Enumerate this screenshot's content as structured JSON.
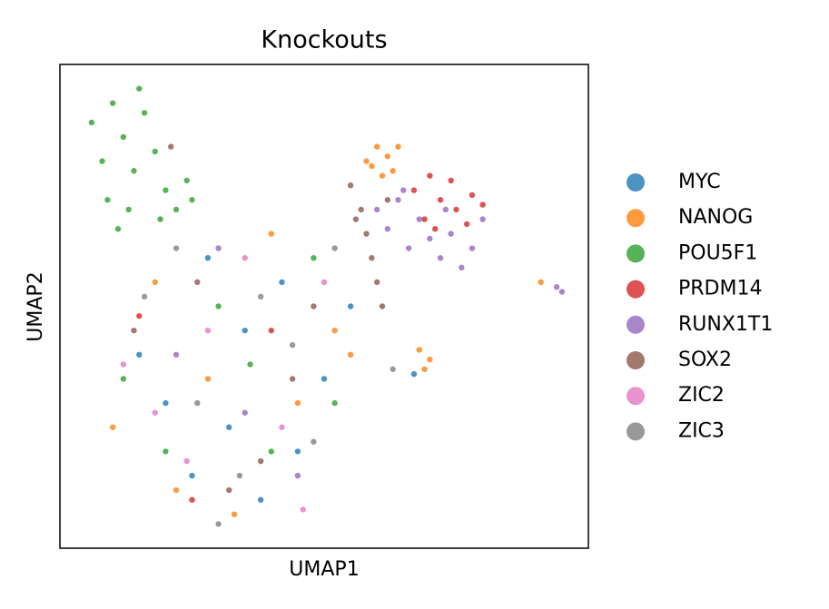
{
  "chart_data": {
    "type": "scatter",
    "title": "Knockouts",
    "x_label": "UMAP1",
    "y_label": "UMAP2",
    "xlim": [
      0,
      100
    ],
    "ylim": [
      0,
      100
    ],
    "opacity": 0.8,
    "series": [
      {
        "name": "MYC",
        "color": "#1f77b4",
        "x": [
          20,
          35,
          28,
          45,
          15,
          38,
          50,
          25,
          42,
          55,
          32,
          67
        ],
        "y": [
          30,
          45,
          60,
          20,
          40,
          10,
          35,
          15,
          55,
          50,
          25,
          36
        ]
      },
      {
        "name": "NANOG",
        "color": "#ff7f0e",
        "x": [
          58,
          60,
          62,
          63,
          61,
          59,
          64,
          10,
          22,
          33,
          45,
          52,
          55,
          18,
          40,
          28,
          91,
          69,
          70,
          68
        ],
        "y": [
          80,
          83,
          81,
          78,
          77,
          79,
          83,
          25,
          12,
          7,
          30,
          45,
          40,
          55,
          65,
          35,
          55,
          37,
          39,
          41
        ]
      },
      {
        "name": "POU5F1",
        "color": "#2ca02c",
        "x": [
          6,
          8,
          10,
          12,
          14,
          16,
          18,
          20,
          22,
          24,
          13,
          9,
          15,
          11,
          19,
          25,
          12,
          30,
          40,
          48,
          20,
          36,
          52
        ],
        "y": [
          88,
          80,
          92,
          85,
          78,
          90,
          82,
          74,
          70,
          76,
          70,
          72,
          95,
          66,
          68,
          72,
          35,
          50,
          20,
          60,
          20,
          38,
          30
        ]
      },
      {
        "name": "PRDM14",
        "color": "#d62728",
        "x": [
          67,
          70,
          72,
          75,
          78,
          80,
          69,
          74,
          77,
          71,
          25,
          40,
          15
        ],
        "y": [
          74,
          77,
          72,
          70,
          73,
          71,
          68,
          76,
          67,
          66,
          10,
          45,
          48
        ]
      },
      {
        "name": "RUNX1T1",
        "color": "#9467bd",
        "x": [
          60,
          62,
          64,
          66,
          68,
          70,
          72,
          74,
          76,
          78,
          80,
          65,
          73,
          94,
          95,
          22,
          35,
          45,
          30
        ],
        "y": [
          70,
          66,
          72,
          62,
          68,
          64,
          60,
          65,
          58,
          62,
          68,
          74,
          70,
          54,
          53,
          40,
          28,
          15,
          62
        ]
      },
      {
        "name": "SOX2",
        "color": "#8c564b",
        "x": [
          55,
          57,
          58,
          59,
          60,
          61,
          56,
          62,
          21,
          14,
          26,
          38,
          48,
          32,
          44
        ],
        "y": [
          75,
          70,
          65,
          60,
          55,
          50,
          68,
          72,
          83,
          45,
          55,
          18,
          50,
          12,
          35
        ]
      },
      {
        "name": "ZIC2",
        "color": "#e377c2",
        "x": [
          18,
          28,
          35,
          42,
          50,
          24,
          12,
          46
        ],
        "y": [
          28,
          45,
          60,
          25,
          55,
          18,
          38,
          8
        ]
      },
      {
        "name": "ZIC3",
        "color": "#7f7f7f",
        "x": [
          16,
          26,
          34,
          44,
          52,
          22,
          38,
          30,
          48,
          63
        ],
        "y": [
          52,
          30,
          15,
          42,
          62,
          62,
          52,
          5,
          22,
          37
        ]
      }
    ]
  }
}
